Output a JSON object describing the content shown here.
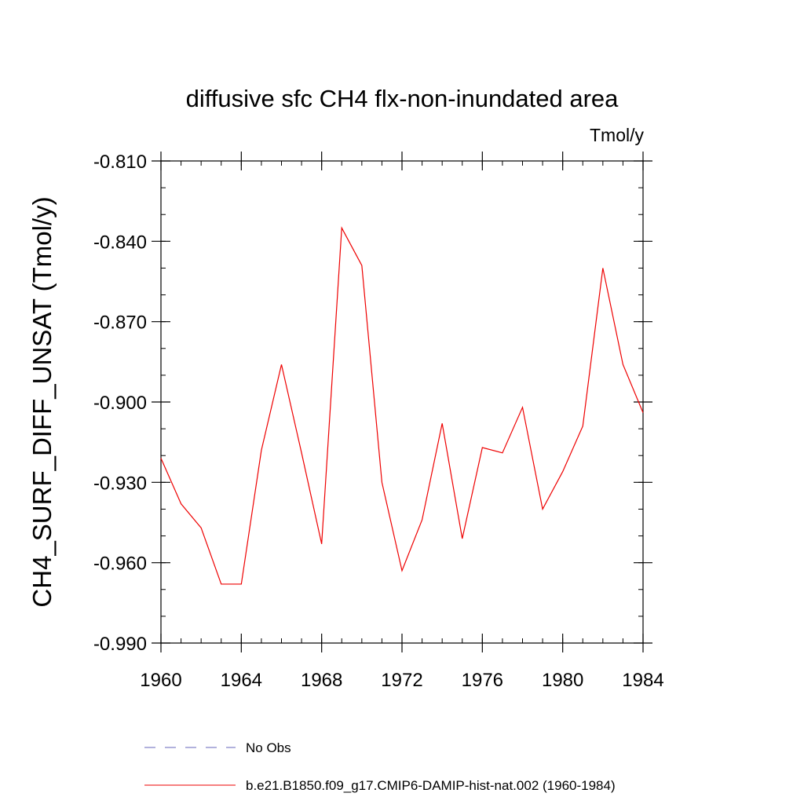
{
  "chart_data": {
    "type": "line",
    "title": "diffusive sfc CH4 flx-non-inundated area",
    "units_label": "Tmol/y",
    "xlabel": "",
    "ylabel": "CH4_SURF_DIFF_UNSAT  (Tmol/y)",
    "xlim": [
      1960,
      1984
    ],
    "ylim": [
      -0.99,
      -0.81
    ],
    "x_ticks": [
      1960,
      1964,
      1968,
      1972,
      1976,
      1980,
      1984
    ],
    "x_tick_labels": [
      "1960",
      "1964",
      "1968",
      "1972",
      "1976",
      "1980",
      "1984"
    ],
    "y_ticks": [
      -0.81,
      -0.84,
      -0.87,
      -0.9,
      -0.93,
      -0.96,
      -0.99
    ],
    "y_tick_labels": [
      "-0.810",
      "-0.840",
      "-0.870",
      "-0.900",
      "-0.930",
      "-0.960",
      "-0.990"
    ],
    "grid": false,
    "legend_placement": "bottom",
    "series": [
      {
        "name": "No Obs",
        "color": "#6666bb",
        "dashed": true,
        "x": [],
        "y": []
      },
      {
        "name": "b.e21.B1850.f09_g17.CMIP6-DAMIP-hist-nat.002 (1960-1984)",
        "color": "#ee0000",
        "dashed": false,
        "x": [
          1960,
          1961,
          1962,
          1963,
          1964,
          1965,
          1966,
          1967,
          1968,
          1969,
          1970,
          1971,
          1972,
          1973,
          1974,
          1975,
          1976,
          1977,
          1978,
          1979,
          1980,
          1981,
          1982,
          1983,
          1984
        ],
        "y": [
          -0.921,
          -0.938,
          -0.947,
          -0.968,
          -0.968,
          -0.918,
          -0.886,
          -0.919,
          -0.953,
          -0.835,
          -0.849,
          -0.93,
          -0.963,
          -0.944,
          -0.908,
          -0.951,
          -0.917,
          -0.919,
          -0.902,
          -0.94,
          -0.926,
          -0.909,
          -0.85,
          -0.886,
          -0.904
        ]
      }
    ]
  }
}
